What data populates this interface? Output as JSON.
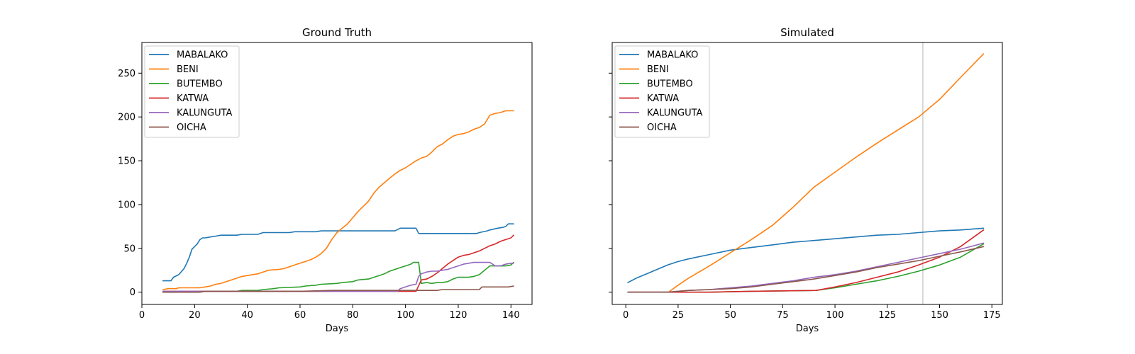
{
  "chart_data": [
    {
      "type": "line",
      "title": "Ground Truth",
      "xlabel": "Days",
      "ylabel": "",
      "xlim": [
        0,
        148
      ],
      "ylim": [
        -14,
        285
      ],
      "xticks": [
        0,
        20,
        40,
        60,
        80,
        100,
        120,
        140
      ],
      "yticks": [
        0,
        50,
        100,
        150,
        200,
        250
      ],
      "show_ytick_labels": true,
      "grid": false,
      "legend": "upper-left",
      "series": [
        {
          "name": "MABALAKO",
          "color": "#1f77b4",
          "x": [
            8,
            11,
            12,
            14,
            16,
            17,
            18,
            19,
            20,
            21,
            22,
            23,
            24,
            26,
            28,
            30,
            32,
            36,
            38,
            44,
            46,
            56,
            58,
            66,
            68,
            96,
            98,
            104,
            105,
            106,
            127,
            128,
            131,
            132,
            135,
            137,
            138,
            139,
            141
          ],
          "y": [
            13,
            13,
            17,
            20,
            27,
            33,
            40,
            49,
            52,
            55,
            60,
            62,
            62,
            63,
            64,
            65,
            65,
            65,
            66,
            66,
            68,
            68,
            69,
            69,
            70,
            70,
            73,
            73,
            67,
            67,
            67,
            68,
            70,
            71,
            73,
            74,
            75,
            78,
            78
          ]
        },
        {
          "name": "BENI",
          "color": "#ff7f0e",
          "x": [
            8,
            10,
            13,
            14,
            22,
            24,
            26,
            28,
            30,
            32,
            34,
            36,
            38,
            40,
            42,
            44,
            46,
            48,
            52,
            54,
            56,
            58,
            60,
            62,
            64,
            66,
            68,
            70,
            72,
            74,
            76,
            78,
            80,
            82,
            84,
            86,
            88,
            90,
            92,
            94,
            96,
            98,
            100,
            102,
            104,
            106,
            108,
            110,
            112,
            114,
            116,
            118,
            120,
            122,
            124,
            126,
            128,
            130,
            132,
            134,
            136,
            138,
            141
          ],
          "y": [
            3,
            4,
            4,
            5,
            5,
            6,
            7,
            9,
            10,
            12,
            14,
            16,
            18,
            19,
            20,
            21,
            23,
            25,
            26,
            27,
            29,
            31,
            33,
            35,
            37,
            40,
            44,
            50,
            60,
            68,
            73,
            78,
            85,
            92,
            98,
            104,
            113,
            120,
            125,
            130,
            135,
            139,
            142,
            146,
            150,
            153,
            155,
            160,
            166,
            169,
            174,
            178,
            180,
            181,
            183,
            186,
            188,
            192,
            202,
            204,
            205,
            207,
            207
          ]
        },
        {
          "name": "BUTEMBO",
          "color": "#2ca02c",
          "x": [
            8,
            20,
            22,
            36,
            38,
            44,
            46,
            50,
            52,
            60,
            62,
            66,
            68,
            74,
            76,
            80,
            82,
            86,
            88,
            90,
            92,
            94,
            96,
            98,
            100,
            102,
            103,
            104,
            105,
            106,
            108,
            110,
            112,
            114,
            116,
            118,
            120,
            122,
            124,
            126,
            128,
            130,
            132,
            134,
            136,
            138,
            140,
            141
          ],
          "y": [
            0,
            0,
            1,
            1,
            2,
            2,
            3,
            4,
            5,
            6,
            7,
            8,
            9,
            10,
            11,
            12,
            14,
            15,
            17,
            19,
            21,
            24,
            26,
            28,
            30,
            32,
            34,
            34,
            34,
            10,
            11,
            10,
            11,
            11,
            12,
            15,
            17,
            17,
            17,
            18,
            20,
            25,
            30,
            30,
            30,
            30,
            31,
            34
          ]
        },
        {
          "name": "KATWA",
          "color": "#d62728",
          "x": [
            8,
            104,
            106,
            108,
            110,
            112,
            114,
            116,
            118,
            120,
            122,
            124,
            126,
            128,
            130,
            132,
            134,
            136,
            138,
            140,
            141
          ],
          "y": [
            1,
            1,
            14,
            15,
            18,
            22,
            27,
            32,
            36,
            40,
            42,
            43,
            45,
            47,
            50,
            53,
            55,
            58,
            60,
            62,
            65
          ]
        },
        {
          "name": "KALUNGUTA",
          "color": "#9467bd",
          "x": [
            8,
            97,
            98,
            100,
            102,
            104,
            105,
            106,
            108,
            110,
            112,
            114,
            116,
            118,
            120,
            122,
            124,
            126,
            128,
            130,
            132,
            134,
            136,
            138,
            140,
            141
          ],
          "y": [
            1,
            1,
            4,
            6,
            8,
            9,
            18,
            21,
            23,
            24,
            24,
            25,
            26,
            28,
            30,
            32,
            33,
            34,
            34,
            34,
            34,
            30,
            30,
            32,
            33,
            33
          ]
        },
        {
          "name": "OICHA",
          "color": "#8c564b",
          "x": [
            8,
            22,
            24,
            60,
            72,
            112,
            114,
            128,
            129,
            139,
            141
          ],
          "y": [
            0,
            0,
            1,
            1,
            2,
            2,
            3,
            3,
            6,
            6,
            7
          ]
        }
      ]
    },
    {
      "type": "line",
      "title": "Simulated",
      "xlabel": "Days",
      "ylabel": "",
      "xlim": [
        -6.5,
        180
      ],
      "ylim": [
        -14,
        285
      ],
      "xticks": [
        0,
        25,
        50,
        75,
        100,
        125,
        150,
        175
      ],
      "yticks": [
        0,
        50,
        100,
        150,
        200,
        250
      ],
      "show_ytick_labels": false,
      "vline_x": 142,
      "vline_color": "#cccccc",
      "grid": false,
      "legend": "upper-left",
      "series": [
        {
          "name": "MABALAKO",
          "color": "#1f77b4",
          "x": [
            1,
            5,
            10,
            15,
            20,
            25,
            30,
            40,
            50,
            60,
            70,
            80,
            90,
            100,
            110,
            120,
            130,
            140,
            150,
            160,
            171
          ],
          "y": [
            11,
            16,
            21,
            26,
            31,
            35,
            38,
            43,
            48,
            51,
            54,
            57,
            59,
            61,
            63,
            65,
            66,
            68,
            70,
            71,
            73
          ]
        },
        {
          "name": "BENI",
          "color": "#ff7f0e",
          "x": [
            21,
            25,
            30,
            40,
            50,
            60,
            70,
            80,
            90,
            100,
            110,
            120,
            130,
            140,
            150,
            160,
            171
          ],
          "y": [
            1,
            8,
            16,
            30,
            45,
            60,
            76,
            97,
            120,
            137,
            154,
            170,
            185,
            200,
            220,
            245,
            272
          ]
        },
        {
          "name": "BUTEMBO",
          "color": "#2ca02c",
          "x": [
            1,
            20,
            40,
            60,
            91,
            100,
            110,
            120,
            130,
            140,
            150,
            160,
            171
          ],
          "y": [
            0,
            0,
            0,
            1,
            2,
            5,
            9,
            13,
            18,
            24,
            31,
            40,
            55
          ]
        },
        {
          "name": "KATWA",
          "color": "#d62728",
          "x": [
            1,
            20,
            40,
            60,
            91,
            100,
            110,
            120,
            130,
            140,
            150,
            160,
            171
          ],
          "y": [
            0,
            0,
            0,
            1,
            2,
            6,
            11,
            17,
            23,
            31,
            40,
            52,
            71
          ]
        },
        {
          "name": "KALUNGUTA",
          "color": "#9467bd",
          "x": [
            1,
            20,
            30,
            40,
            50,
            60,
            70,
            80,
            90,
            100,
            110,
            120,
            130,
            140,
            150,
            160,
            171
          ],
          "y": [
            0,
            0,
            2,
            3,
            5,
            7,
            10,
            13,
            17,
            20,
            24,
            29,
            34,
            39,
            44,
            49,
            56
          ]
        },
        {
          "name": "OICHA",
          "color": "#8c564b",
          "x": [
            1,
            20,
            30,
            40,
            50,
            60,
            70,
            80,
            90,
            100,
            110,
            120,
            130,
            140,
            150,
            160,
            171
          ],
          "y": [
            0,
            0,
            2,
            3,
            4,
            6,
            9,
            12,
            15,
            19,
            23,
            28,
            32,
            36,
            41,
            46,
            52
          ]
        }
      ]
    }
  ]
}
